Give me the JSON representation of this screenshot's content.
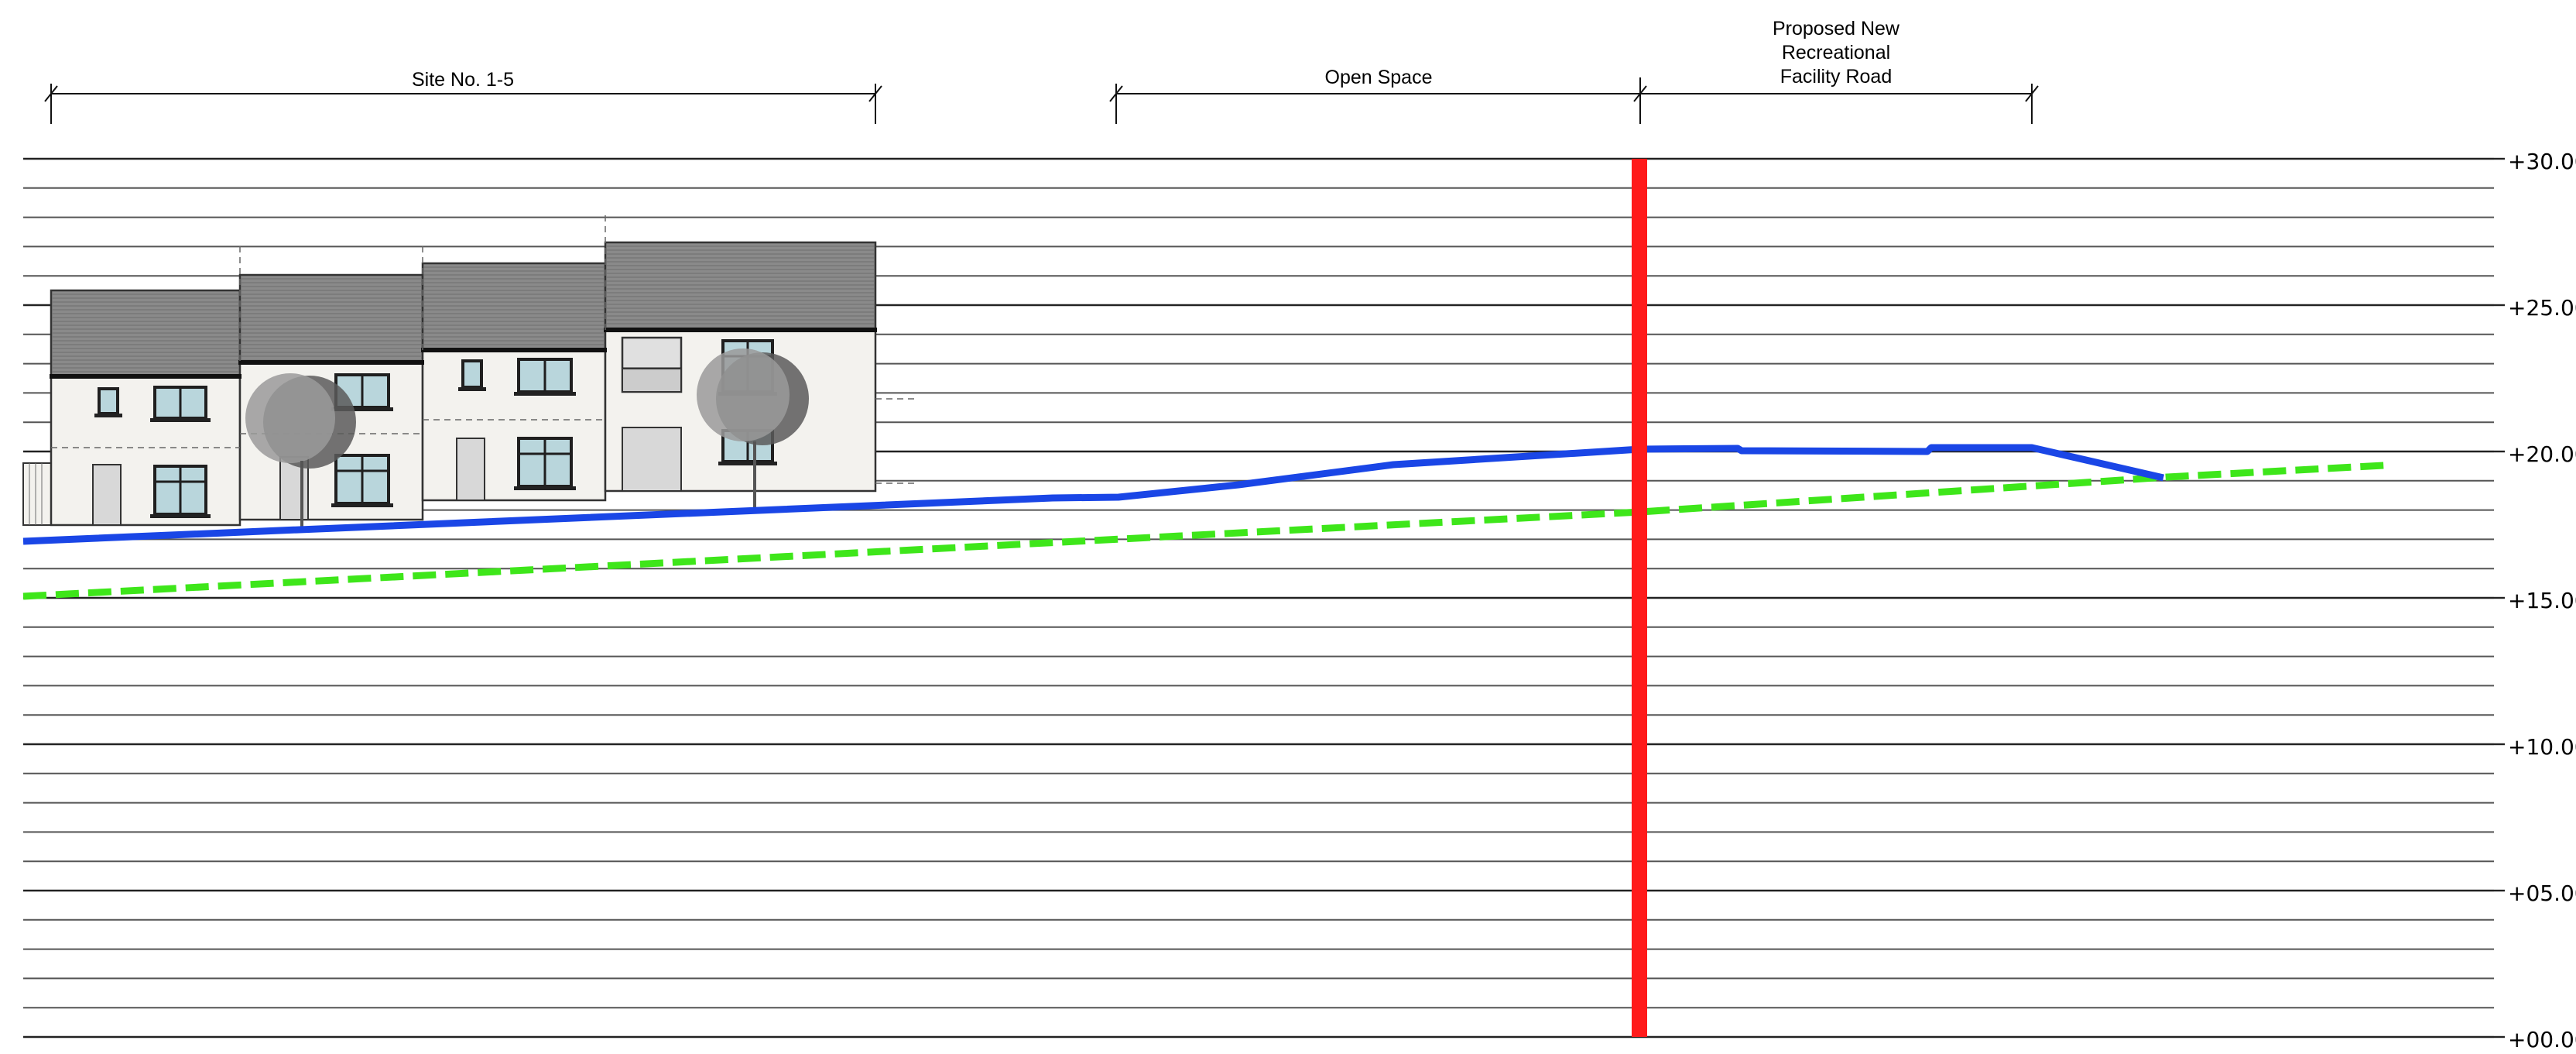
{
  "annotations": {
    "site_label": "Site No. 1-5",
    "open_space_label": "Open Space",
    "road_label_lines": [
      "Proposed New",
      "Recreational",
      "Facility Road"
    ]
  },
  "levels": [
    "+30.00",
    "+25.00",
    "+20.00",
    "+15.00",
    "+10.00",
    "+05.00",
    "+00.00"
  ],
  "colors": {
    "section_marker": "#ff1a1a",
    "ground_level_line": "#1a46e6",
    "proposed_level_line": "#3ee61a",
    "roof": "#8a8a8a",
    "window_glass": "#b9d6dc",
    "wall": "#f3f2ee"
  },
  "elements": {
    "houses": "terrace-of-houses-elevation",
    "trees": [
      "tree-icon",
      "tree-icon"
    ],
    "section_marker": "section-line"
  }
}
